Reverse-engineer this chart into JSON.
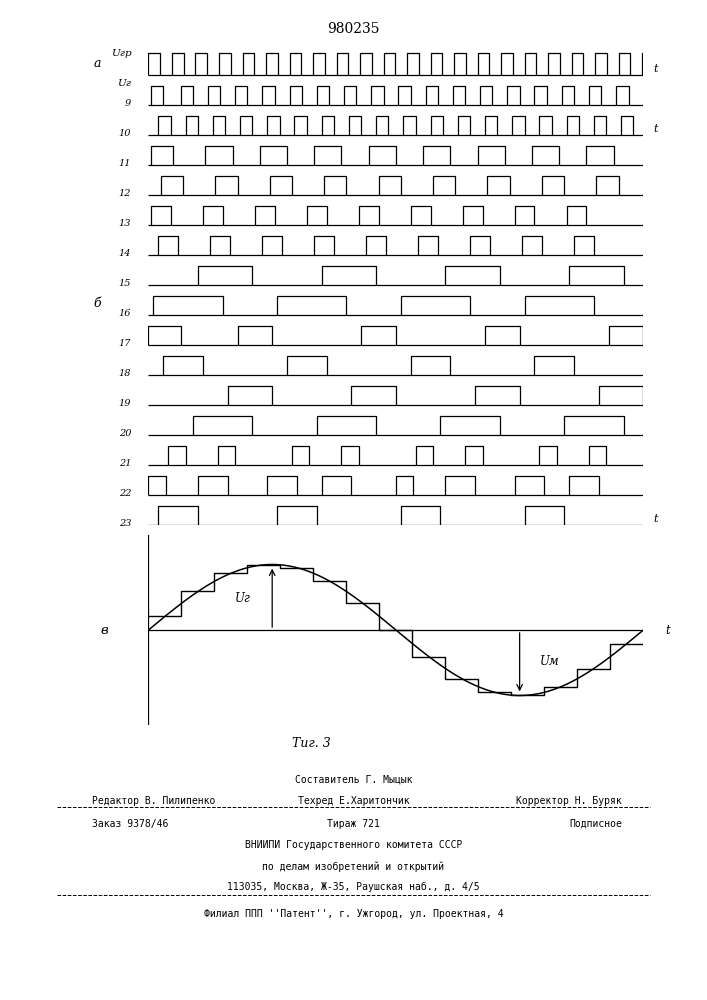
{
  "title": "980235",
  "fig_caption": "Τиг. 3",
  "bg": "#ffffff",
  "lc": "#000000",
  "T": 2.0,
  "carrier_period": 0.095,
  "carrier_duty": 0.5,
  "n_sine_steps": 15,
  "channel_names": [
    "Uгр",
    "9",
    "10",
    "11",
    "12",
    "13",
    "14",
    "15",
    "16",
    "17",
    "18",
    "19",
    "20",
    "21",
    "22",
    "23"
  ],
  "pulse_patterns": [
    [
      [
        0.01,
        0.06
      ],
      [
        0.13,
        0.18
      ],
      [
        0.24,
        0.29
      ],
      [
        0.35,
        0.4
      ],
      [
        0.46,
        0.51
      ],
      [
        0.57,
        0.62
      ],
      [
        0.68,
        0.73
      ],
      [
        0.79,
        0.84
      ],
      [
        0.9,
        0.95
      ],
      [
        1.01,
        1.06
      ],
      [
        1.12,
        1.17
      ],
      [
        1.23,
        1.28
      ],
      [
        1.34,
        1.39
      ],
      [
        1.45,
        1.5
      ],
      [
        1.56,
        1.61
      ],
      [
        1.67,
        1.72
      ],
      [
        1.78,
        1.83
      ],
      [
        1.89,
        1.94
      ]
    ],
    [
      [
        0.04,
        0.09
      ],
      [
        0.15,
        0.2
      ],
      [
        0.26,
        0.31
      ],
      [
        0.37,
        0.42
      ],
      [
        0.48,
        0.53
      ],
      [
        0.59,
        0.64
      ],
      [
        0.7,
        0.75
      ],
      [
        0.81,
        0.86
      ],
      [
        0.92,
        0.97
      ],
      [
        1.03,
        1.08
      ],
      [
        1.14,
        1.19
      ],
      [
        1.25,
        1.3
      ],
      [
        1.36,
        1.41
      ],
      [
        1.47,
        1.52
      ],
      [
        1.58,
        1.63
      ],
      [
        1.69,
        1.74
      ],
      [
        1.8,
        1.85
      ],
      [
        1.91,
        1.96
      ]
    ],
    [
      [
        0.01,
        0.1
      ],
      [
        0.23,
        0.34
      ],
      [
        0.45,
        0.56
      ],
      [
        0.67,
        0.78
      ],
      [
        0.89,
        1.0
      ],
      [
        1.11,
        1.22
      ],
      [
        1.33,
        1.44
      ],
      [
        1.55,
        1.66
      ],
      [
        1.77,
        1.88
      ]
    ],
    [
      [
        0.05,
        0.14
      ],
      [
        0.27,
        0.36
      ],
      [
        0.49,
        0.58
      ],
      [
        0.71,
        0.8
      ],
      [
        0.93,
        1.02
      ],
      [
        1.15,
        1.24
      ],
      [
        1.37,
        1.46
      ],
      [
        1.59,
        1.68
      ],
      [
        1.81,
        1.9
      ]
    ],
    [
      [
        0.01,
        0.09
      ],
      [
        0.22,
        0.3
      ],
      [
        0.43,
        0.51
      ],
      [
        0.64,
        0.72
      ],
      [
        0.85,
        0.93
      ],
      [
        1.06,
        1.14
      ],
      [
        1.27,
        1.35
      ],
      [
        1.48,
        1.56
      ],
      [
        1.69,
        1.77
      ]
    ],
    [
      [
        0.04,
        0.12
      ],
      [
        0.25,
        0.33
      ],
      [
        0.46,
        0.54
      ],
      [
        0.67,
        0.75
      ],
      [
        0.88,
        0.96
      ],
      [
        1.09,
        1.17
      ],
      [
        1.3,
        1.38
      ],
      [
        1.51,
        1.59
      ],
      [
        1.72,
        1.8
      ]
    ],
    [
      [
        0.2,
        0.42
      ],
      [
        0.7,
        0.92
      ],
      [
        1.2,
        1.42
      ],
      [
        1.7,
        1.92
      ]
    ],
    [
      [
        0.02,
        0.3
      ],
      [
        0.52,
        0.8
      ],
      [
        1.02,
        1.3
      ],
      [
        1.52,
        1.8
      ]
    ],
    [
      [
        0.0,
        0.13
      ],
      [
        0.36,
        0.5
      ],
      [
        0.86,
        1.0
      ],
      [
        1.36,
        1.5
      ],
      [
        1.86,
        2.0
      ]
    ],
    [
      [
        0.06,
        0.22
      ],
      [
        0.56,
        0.72
      ],
      [
        1.06,
        1.22
      ],
      [
        1.56,
        1.72
      ]
    ],
    [
      [
        0.32,
        0.5
      ],
      [
        0.82,
        1.0
      ],
      [
        1.32,
        1.5
      ],
      [
        1.82,
        2.0
      ]
    ],
    [
      [
        0.18,
        0.42
      ],
      [
        0.68,
        0.92
      ],
      [
        1.18,
        1.42
      ],
      [
        1.68,
        1.92
      ]
    ],
    [
      [
        0.08,
        0.15
      ],
      [
        0.28,
        0.35
      ],
      [
        0.58,
        0.65
      ],
      [
        0.78,
        0.85
      ],
      [
        1.08,
        1.15
      ],
      [
        1.28,
        1.35
      ],
      [
        1.58,
        1.65
      ],
      [
        1.78,
        1.85
      ]
    ],
    [
      [
        0.0,
        0.07
      ],
      [
        0.2,
        0.32
      ],
      [
        0.48,
        0.6
      ],
      [
        0.7,
        0.82
      ],
      [
        1.0,
        1.07
      ],
      [
        1.2,
        1.32
      ],
      [
        1.48,
        1.6
      ],
      [
        1.7,
        1.82
      ]
    ],
    [
      [
        0.04,
        0.2
      ],
      [
        0.52,
        0.68
      ],
      [
        1.02,
        1.18
      ],
      [
        1.52,
        1.68
      ]
    ]
  ],
  "footer_line1_center": "Составитель Г. Мыцык",
  "footer_line2_left": "Редактор В. Пилипенко",
  "footer_line2_center": "Техред Е.Харитончик",
  "footer_line2_right": "Корректор Н. Буряк",
  "footer_line3_left": "Заказ 9378/46",
  "footer_line3_center": "Тираж 721",
  "footer_line3_right": "Подписное",
  "footer_line4": "ВНИИПИ Государственного комитета СССР",
  "footer_line5": "по делам изобретений и открытий",
  "footer_line6": "113035, Москва, Ж-35, Раушская наб., д. 4/5",
  "footer_line7": "Филиал ППП ''Патент'', г. Ужгород, ул. Проектная, 4"
}
